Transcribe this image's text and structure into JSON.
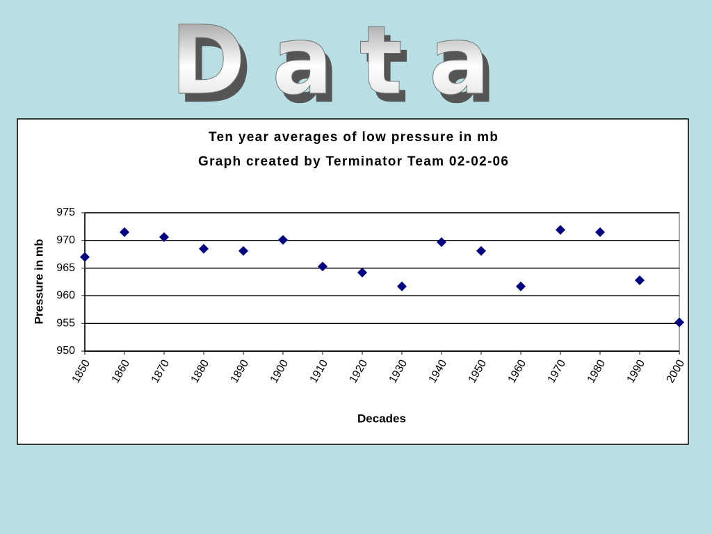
{
  "heading": "Data",
  "chart_data": {
    "type": "scatter",
    "title": "Ten year averages of low pressure in mb",
    "subtitle": "Graph created by Terminator Team 02-02-06",
    "x_label": "Decades",
    "y_label": "Pressure in mb",
    "x": [
      1850,
      1860,
      1870,
      1880,
      1890,
      1900,
      1910,
      1920,
      1930,
      1940,
      1950,
      1960,
      1970,
      1980,
      1990,
      2000
    ],
    "values": [
      967.0,
      971.5,
      970.6,
      968.5,
      968.1,
      970.1,
      965.3,
      964.2,
      961.7,
      969.7,
      968.1,
      961.7,
      971.9,
      971.5,
      962.8,
      955.2
    ],
    "color": "#000080",
    "xlim": [
      1850,
      2000
    ],
    "xticks": [
      1850,
      1860,
      1870,
      1880,
      1890,
      1900,
      1910,
      1920,
      1930,
      1940,
      1950,
      1960,
      1970,
      1980,
      1990,
      2000
    ],
    "ylim": [
      950,
      975
    ],
    "yticks": [
      950,
      955,
      960,
      965,
      970,
      975
    ],
    "grid": true
  }
}
